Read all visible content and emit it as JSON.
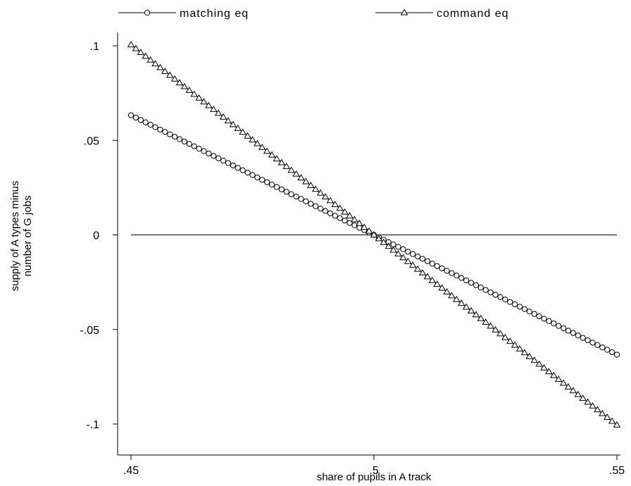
{
  "chart_data": {
    "type": "line",
    "xlabel": "share of pupils in A track",
    "ylabel_lines": [
      "supply of A types minus",
      "number of G jobs"
    ],
    "xlim": [
      0.45,
      0.55
    ],
    "ylim": [
      -0.1,
      0.1
    ],
    "xticks": [
      {
        "value": 0.45,
        "label": ".45"
      },
      {
        "value": 0.5,
        "label": ".5"
      },
      {
        "value": 0.55,
        "label": ".55"
      }
    ],
    "yticks": [
      {
        "value": 0.1,
        "label": ".1"
      },
      {
        "value": 0.05,
        "label": ".05"
      },
      {
        "value": 0,
        "label": "0"
      },
      {
        "value": -0.05,
        "label": "-.05"
      },
      {
        "value": -0.1,
        "label": "-.1"
      }
    ],
    "grid": false,
    "legend_position": "top",
    "reference_line_y": 0,
    "series": [
      {
        "name": "matching eq",
        "marker": "circle",
        "x_start": 0.45,
        "x_end": 0.55,
        "x_step": 0.001,
        "y_at_x_start": 0.0633,
        "y_at_x_end": -0.0633
      },
      {
        "name": "command eq",
        "marker": "triangle",
        "x_start": 0.45,
        "x_end": 0.55,
        "x_step": 0.001,
        "y_at_x_start": 0.1005,
        "y_at_x_end": -0.1005
      }
    ]
  }
}
